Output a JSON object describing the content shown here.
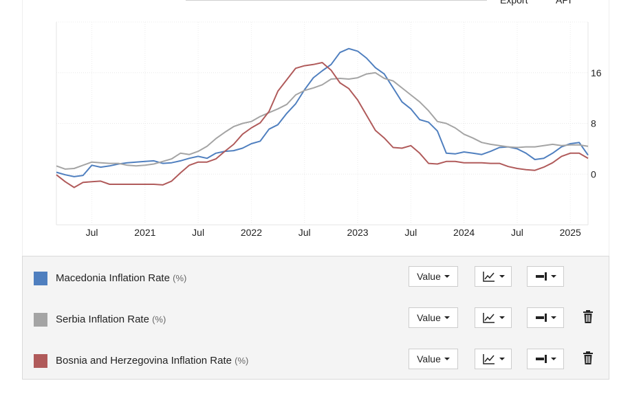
{
  "top_links": {
    "export": "Export",
    "api": "API"
  },
  "chart_data": {
    "type": "line",
    "x_ticks": [
      "Jul",
      "2021",
      "Jul",
      "2022",
      "Jul",
      "2023",
      "Jul",
      "2024",
      "Jul",
      "2025"
    ],
    "y_ticks": [
      0,
      8,
      16
    ],
    "ylim": [
      -8,
      24
    ],
    "x_range": [
      "2020-03",
      "2025-03"
    ],
    "grid": true,
    "series": [
      {
        "name": "Macedonia Inflation Rate",
        "color": "#4f7fbf",
        "values": [
          0.3,
          -0.1,
          -0.4,
          -0.2,
          1.4,
          1.1,
          1.3,
          1.6,
          1.8,
          1.9,
          2.0,
          2.1,
          1.7,
          1.8,
          2.1,
          2.5,
          2.8,
          2.5,
          3.3,
          3.6,
          3.7,
          4.1,
          4.8,
          5.2,
          7.1,
          7.8,
          9.6,
          11.1,
          13.3,
          15.2,
          16.3,
          17.3,
          19.2,
          19.8,
          19.4,
          18.3,
          16.8,
          15.8,
          13.6,
          11.4,
          10.3,
          8.6,
          8.2,
          6.8,
          3.3,
          3.2,
          3.5,
          3.3,
          3.1,
          3.6,
          4.2,
          4.3,
          4.0,
          3.3,
          2.3,
          2.5,
          3.3,
          4.3,
          4.8,
          5.0,
          3.0
        ]
      },
      {
        "name": "Serbia Inflation Rate",
        "color": "#a4a4a4",
        "values": [
          1.3,
          0.8,
          0.9,
          1.4,
          1.9,
          1.8,
          1.7,
          1.7,
          1.4,
          1.3,
          1.4,
          1.6,
          2.0,
          2.4,
          3.3,
          3.1,
          3.6,
          4.4,
          5.6,
          6.6,
          7.5,
          8.0,
          8.3,
          9.1,
          9.7,
          10.3,
          11.0,
          12.5,
          13.2,
          13.6,
          14.1,
          15.0,
          15.1,
          15.0,
          15.2,
          15.8,
          16.0,
          15.1,
          14.7,
          13.6,
          12.5,
          11.4,
          10.0,
          8.3,
          8.0,
          7.3,
          6.3,
          5.7,
          5.0,
          4.7,
          4.5,
          4.3,
          4.2,
          4.3,
          4.3,
          4.5,
          4.7,
          4.5,
          4.6,
          4.6,
          4.4
        ]
      },
      {
        "name": "Bosnia and Herzegovina Inflation Rate",
        "color": "#b05a5a",
        "values": [
          -0.1,
          -1.2,
          -2.1,
          -1.3,
          -1.2,
          -1.1,
          -1.6,
          -1.6,
          -1.6,
          -1.6,
          -1.6,
          -1.6,
          -1.7,
          -1.1,
          0.2,
          1.4,
          1.9,
          1.9,
          2.4,
          3.6,
          4.7,
          6.3,
          7.3,
          8.1,
          9.9,
          13.1,
          14.9,
          16.7,
          17.1,
          17.3,
          17.6,
          16.4,
          14.4,
          13.5,
          11.7,
          9.3,
          6.9,
          5.7,
          4.2,
          4.1,
          4.5,
          3.3,
          1.7,
          1.6,
          2.0,
          2.0,
          1.8,
          1.8,
          1.8,
          1.7,
          1.7,
          1.2,
          0.9,
          0.7,
          0.6,
          1.1,
          1.8,
          2.8,
          3.3,
          3.3,
          2.5
        ]
      }
    ]
  },
  "legend": {
    "rows": [
      {
        "name": "Macedonia Inflation Rate",
        "unit": "(%)",
        "color": "#4f7fbf",
        "value_label": "Value",
        "show_delete": false
      },
      {
        "name": "Serbia Inflation Rate",
        "unit": "(%)",
        "color": "#a4a4a4",
        "value_label": "Value",
        "show_delete": true
      },
      {
        "name": "Bosnia and Herzegovina Inflation Rate",
        "unit": "(%)",
        "color": "#b05a5a",
        "value_label": "Value",
        "show_delete": true
      }
    ],
    "icons": {
      "chart_type": "line-chart-icon",
      "axis": "axis-position-icon",
      "delete": "trash-icon"
    }
  }
}
